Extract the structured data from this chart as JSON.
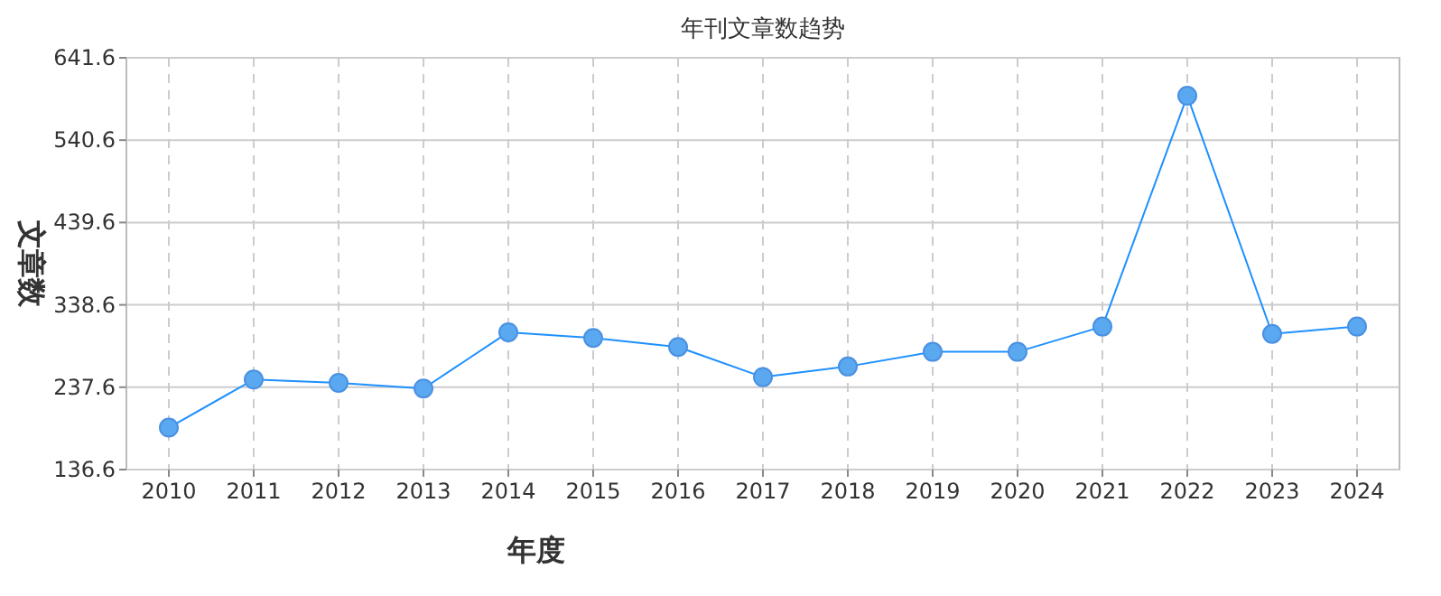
{
  "chart_data": {
    "type": "line",
    "title": "年刊文章数趋势",
    "xlabel": "年度",
    "ylabel": "文章数",
    "categories": [
      "2010",
      "2011",
      "2012",
      "2013",
      "2014",
      "2015",
      "2016",
      "2017",
      "2018",
      "2019",
      "2020",
      "2021",
      "2022",
      "2023",
      "2024"
    ],
    "series": [
      {
        "color": "#1e90ff",
        "values": [
          188,
          247,
          243,
          236,
          305,
          298,
          287,
          250,
          263,
          281,
          281,
          312,
          595,
          303,
          312
        ]
      }
    ],
    "ylim": [
      136.6,
      641.6
    ],
    "yticks": [
      136.6,
      237.6,
      338.6,
      439.6,
      540.6,
      641.6
    ],
    "grid": true,
    "marker": "circle",
    "line_style": "solid"
  }
}
